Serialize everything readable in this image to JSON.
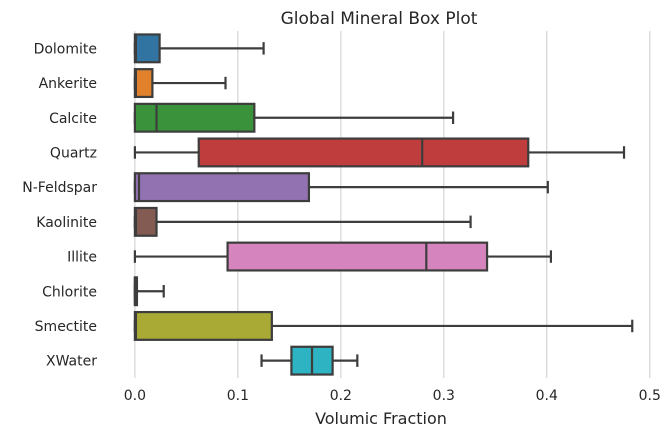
{
  "chart_data": {
    "type": "box",
    "orientation": "horizontal",
    "title": "Global Mineral Box Plot",
    "xlabel": "Volumic Fraction",
    "ylabel": "",
    "xlim": [
      -0.03,
      0.508
    ],
    "xticks": [
      "0.0",
      "0.1",
      "0.2",
      "0.3",
      "0.4",
      "0.5"
    ],
    "xtick_values": [
      0.0,
      0.1,
      0.2,
      0.3,
      0.4,
      0.5
    ],
    "grid": "vertical",
    "categories": [
      "Dolomite",
      "Ankerite",
      "Calcite",
      "Quartz",
      "N-Feldspar",
      "Kaolinite",
      "Illite",
      "Chlorite",
      "Smectite",
      "XWater"
    ],
    "colors": [
      "#3274a1",
      "#e1812c",
      "#3a923a",
      "#c03d3e",
      "#9372b2",
      "#845b53",
      "#d684bd",
      "#7f7f7f",
      "#a9aa35",
      "#2eb3c2"
    ],
    "boxes": [
      {
        "whislo": 0.0,
        "q1": 0.0,
        "med": 0.001,
        "q3": 0.024,
        "whishi": 0.125
      },
      {
        "whislo": 0.0,
        "q1": 0.0,
        "med": 0.001,
        "q3": 0.017,
        "whishi": 0.088
      },
      {
        "whislo": 0.0,
        "q1": 0.0,
        "med": 0.021,
        "q3": 0.116,
        "whishi": 0.309
      },
      {
        "whislo": 0.0,
        "q1": 0.062,
        "med": 0.279,
        "q3": 0.382,
        "whishi": 0.475
      },
      {
        "whislo": 0.0,
        "q1": 0.0,
        "med": 0.004,
        "q3": 0.169,
        "whishi": 0.401
      },
      {
        "whislo": 0.0,
        "q1": 0.0,
        "med": 0.001,
        "q3": 0.021,
        "whishi": 0.326
      },
      {
        "whislo": 0.0,
        "q1": 0.09,
        "med": 0.283,
        "q3": 0.342,
        "whishi": 0.404
      },
      {
        "whislo": 0.0,
        "q1": 0.0,
        "med": 0.0,
        "q3": 0.002,
        "whishi": 0.028
      },
      {
        "whislo": 0.0,
        "q1": 0.0,
        "med": 0.001,
        "q3": 0.133,
        "whishi": 0.483
      },
      {
        "whislo": 0.123,
        "q1": 0.152,
        "med": 0.172,
        "q3": 0.192,
        "whishi": 0.216
      }
    ]
  }
}
